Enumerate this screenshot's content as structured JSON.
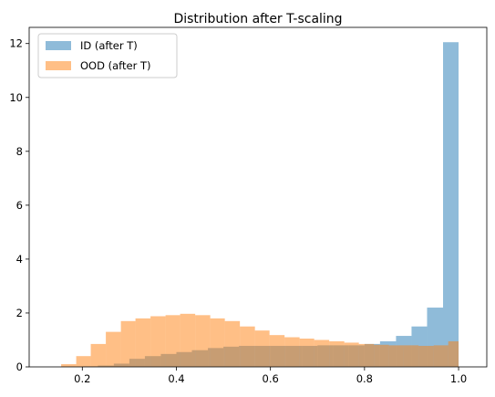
{
  "chart_data": {
    "type": "bar",
    "title": "Distribution after T-scaling",
    "xlabel": "",
    "ylabel": "",
    "xlim": [
      0.087,
      1.06
    ],
    "ylim": [
      0,
      12.6
    ],
    "xticks": [
      0.2,
      0.4,
      0.6,
      0.8,
      1.0
    ],
    "xtick_labels": [
      "0.2",
      "0.4",
      "0.6",
      "0.8",
      "1.0"
    ],
    "yticks": [
      0,
      2,
      4,
      6,
      8,
      10,
      12
    ],
    "ytick_labels": [
      "0",
      "2",
      "4",
      "6",
      "8",
      "10",
      "12"
    ],
    "grid": false,
    "legend": "top-left",
    "series": [
      {
        "name": "ID (after T)",
        "color": "#1f77b4",
        "opacity": 0.5,
        "bin_edges": [
          0.2,
          0.233,
          0.267,
          0.3,
          0.333,
          0.367,
          0.4,
          0.433,
          0.467,
          0.5,
          0.533,
          0.567,
          0.6,
          0.633,
          0.667,
          0.7,
          0.733,
          0.767,
          0.8,
          0.833,
          0.867,
          0.9,
          0.933,
          0.967,
          1.0
        ],
        "values": [
          0.02,
          0.05,
          0.12,
          0.3,
          0.4,
          0.48,
          0.55,
          0.62,
          0.7,
          0.75,
          0.78,
          0.78,
          0.78,
          0.78,
          0.78,
          0.8,
          0.8,
          0.8,
          0.85,
          0.95,
          1.15,
          1.5,
          2.2,
          12.05
        ]
      },
      {
        "name": "OOD (after T)",
        "color": "#ff7f0e",
        "opacity": 0.5,
        "bin_edges": [
          0.155,
          0.187,
          0.218,
          0.25,
          0.282,
          0.313,
          0.345,
          0.377,
          0.408,
          0.44,
          0.472,
          0.503,
          0.535,
          0.567,
          0.598,
          0.63,
          0.662,
          0.693,
          0.725,
          0.757,
          0.788,
          0.82,
          0.852,
          0.883,
          0.915,
          0.947,
          0.978,
          1.0
        ],
        "values": [
          0.1,
          0.4,
          0.85,
          1.3,
          1.7,
          1.8,
          1.88,
          1.92,
          1.97,
          1.92,
          1.8,
          1.7,
          1.5,
          1.35,
          1.18,
          1.1,
          1.05,
          1.0,
          0.95,
          0.9,
          0.85,
          0.82,
          0.8,
          0.8,
          0.78,
          0.8,
          0.95
        ]
      }
    ]
  }
}
